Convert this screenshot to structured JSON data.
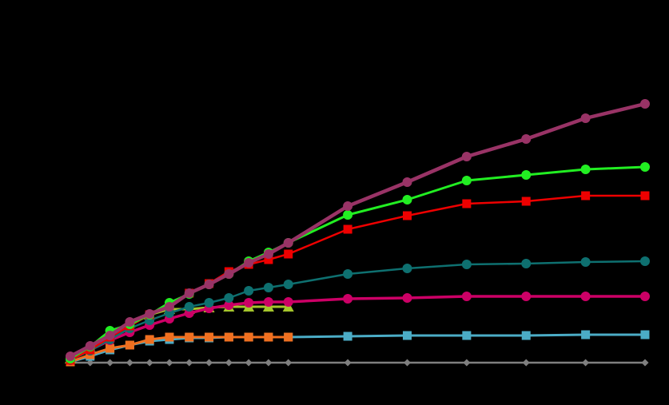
{
  "chart_data": {
    "type": "line",
    "x": [
      0,
      1,
      2,
      3,
      4,
      5,
      6,
      7,
      8,
      9,
      10,
      11,
      14,
      17,
      20,
      23,
      26,
      29
    ],
    "xlim": [
      0,
      29
    ],
    "ylim": [
      0,
      400
    ],
    "background": "#000000",
    "series": [
      {
        "color": "#7f7f7f",
        "marker": "diamond",
        "width": 2.5,
        "values": [
          0,
          0,
          0,
          0,
          0,
          0,
          0,
          0,
          0,
          0,
          0,
          0,
          0,
          0,
          0,
          0,
          0,
          0
        ]
      },
      {
        "color": "#4bacc6",
        "marker": "square",
        "width": 3,
        "values": [
          1,
          8,
          16,
          22,
          27,
          29,
          31,
          31,
          32,
          32,
          32,
          32,
          33,
          34,
          34,
          34,
          35,
          35
        ]
      },
      {
        "color": "#f07020",
        "marker": "square",
        "width": 3,
        "values": [
          1,
          10,
          18,
          22,
          29,
          32,
          32,
          32,
          32,
          32,
          32,
          32,
          null,
          null,
          null,
          null,
          null,
          null
        ]
      },
      {
        "color": "#a6c62c",
        "marker": "triangle",
        "width": 3,
        "values": [
          5,
          19,
          35,
          50,
          60,
          67,
          67,
          69,
          70,
          70,
          70,
          70,
          null,
          null,
          null,
          null,
          null,
          null
        ]
      },
      {
        "color": "#cc0066",
        "marker": "circle",
        "width": 3.5,
        "values": [
          5,
          16,
          28,
          38,
          47,
          55,
          62,
          68,
          72,
          75,
          76,
          76,
          80,
          81,
          83,
          83,
          83,
          83
        ]
      },
      {
        "color": "#0e7070",
        "marker": "circle",
        "width": 2.5,
        "values": [
          3,
          15,
          29,
          43,
          53,
          62,
          70,
          75,
          81,
          90,
          94,
          98,
          111,
          118,
          123,
          124,
          126,
          127
        ]
      },
      {
        "color": "#ee0000",
        "marker": "square",
        "width": 2.5,
        "values": [
          3,
          16,
          32,
          46,
          60,
          72,
          87,
          99,
          114,
          123,
          129,
          136,
          167,
          184,
          199,
          202,
          209,
          209
        ]
      },
      {
        "color": "#22ee22",
        "marker": "circle",
        "width": 3,
        "values": [
          5,
          20,
          40,
          48,
          60,
          75,
          86,
          98,
          111,
          127,
          138,
          150,
          185,
          204,
          228,
          235,
          242,
          245
        ]
      },
      {
        "color": "#993366",
        "marker": "circle",
        "width": 4.5,
        "values": [
          8,
          21,
          34,
          51,
          61,
          70,
          87,
          98,
          111,
          125,
          136,
          150,
          196,
          226,
          258,
          280,
          306,
          324
        ]
      }
    ]
  }
}
